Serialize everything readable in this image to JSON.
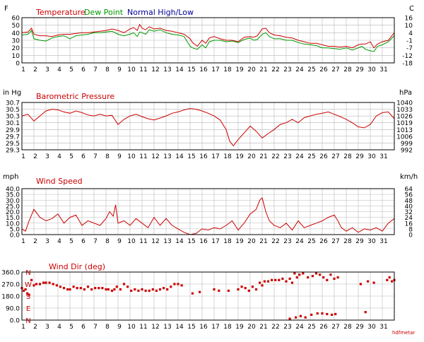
{
  "colors": {
    "temperature": "#cc0000",
    "dew_point": "#009900",
    "normal": "#000099",
    "grid": "#b8b8b8",
    "axis": "#000000",
    "title_red": "#cc0000",
    "compass": "#cc0000"
  },
  "days": [
    "1",
    "2",
    "3",
    "4",
    "5",
    "6",
    "7",
    "8",
    "9",
    "10",
    "11",
    "12",
    "13",
    "14",
    "15",
    "16",
    "17",
    "18",
    "19",
    "20",
    "21",
    "22",
    "23",
    "24",
    "25",
    "26",
    "27",
    "28",
    "29",
    "30",
    "31"
  ],
  "watermark": "hdfmetar",
  "chart_data": [
    {
      "type": "line",
      "legend": [
        {
          "name": "Temperature",
          "color": "#cc0000"
        },
        {
          "name": "Dew Point",
          "color": "#009900"
        },
        {
          "name": "Normal High/Low",
          "color": "#000099"
        }
      ],
      "left_unit": "F",
      "right_unit": "C",
      "left_ticks": [
        "60",
        "50",
        "40",
        "30",
        "20",
        "10",
        "0"
      ],
      "right_ticks": [
        "16",
        "10",
        "4",
        "-1",
        "-7",
        "-12",
        "-18"
      ],
      "ylim": [
        0,
        60
      ],
      "xlim": [
        1,
        32
      ],
      "series": [
        {
          "name": "Temperature",
          "x": [
            1,
            1.5,
            1.8,
            2,
            2.5,
            3,
            3.5,
            4,
            4.5,
            5,
            5.5,
            6,
            6.5,
            7,
            7.5,
            8,
            8.5,
            9,
            9.5,
            10,
            10.3,
            10.6,
            10.8,
            11,
            11.3,
            11.6,
            12,
            12.5,
            13,
            13.5,
            14,
            14.5,
            15,
            15.2,
            15.6,
            16,
            16.3,
            16.6,
            17,
            17.5,
            18,
            18.5,
            19,
            19.5,
            20,
            20.3,
            20.6,
            21,
            21.3,
            21.6,
            22,
            22.5,
            23,
            23.5,
            24,
            24.5,
            25,
            25.5,
            26,
            26.5,
            27,
            27.5,
            28,
            28.5,
            29,
            29.3,
            29.6,
            30,
            30.3,
            30.6,
            31,
            31.5,
            32
          ],
          "values": [
            40,
            41,
            46,
            38,
            36,
            36,
            35,
            37,
            38,
            38,
            39,
            40,
            40,
            41,
            42,
            43,
            45,
            43,
            40,
            45,
            47,
            43,
            51,
            46,
            44,
            48,
            45,
            46,
            43,
            42,
            40,
            38,
            32,
            27,
            22,
            30,
            26,
            33,
            35,
            32,
            30,
            30,
            28,
            34,
            35,
            34,
            36,
            45,
            46,
            40,
            37,
            36,
            34,
            33,
            30,
            28,
            26,
            26,
            24,
            22,
            22,
            21,
            22,
            20,
            24,
            25,
            25,
            28,
            20,
            25,
            28,
            30,
            40
          ]
        },
        {
          "name": "Dew Point",
          "x": [
            1,
            1.5,
            1.8,
            2,
            2.5,
            3,
            3.5,
            4,
            4.5,
            5,
            5.5,
            6,
            6.5,
            7,
            7.5,
            8,
            8.5,
            9,
            9.5,
            10,
            10.3,
            10.6,
            10.8,
            11,
            11.3,
            11.6,
            12,
            12.5,
            13,
            13.5,
            14,
            14.5,
            15,
            15.2,
            15.6,
            16,
            16.3,
            16.6,
            17,
            17.5,
            18,
            18.5,
            19,
            19.5,
            20,
            20.3,
            20.6,
            21,
            21.3,
            21.6,
            22,
            22.5,
            23,
            23.5,
            24,
            24.5,
            25,
            25.5,
            26,
            26.5,
            27,
            27.5,
            28,
            28.5,
            29,
            29.3,
            29.6,
            30,
            30.3,
            30.6,
            31,
            31.5,
            32
          ],
          "values": [
            37,
            38,
            43,
            32,
            30,
            29,
            33,
            35,
            36,
            32,
            36,
            37,
            38,
            40,
            40,
            41,
            42,
            38,
            36,
            38,
            40,
            35,
            41,
            40,
            38,
            44,
            42,
            44,
            40,
            38,
            37,
            35,
            22,
            20,
            18,
            24,
            20,
            28,
            30,
            30,
            28,
            29,
            27,
            31,
            33,
            30,
            31,
            38,
            40,
            35,
            32,
            32,
            30,
            30,
            27,
            25,
            24,
            23,
            20,
            20,
            19,
            18,
            20,
            17,
            20,
            22,
            18,
            16,
            15,
            22,
            24,
            28,
            36
          ]
        }
      ]
    },
    {
      "type": "line",
      "title": "Barometric Pressure",
      "left_unit": "in Hg",
      "right_unit": "hPa",
      "left_ticks": [
        "30.7",
        "30.5",
        "30.3",
        "30.1",
        "29.9",
        "29.7",
        "29.5",
        "29.3"
      ],
      "right_ticks": [
        "1040",
        "1033",
        "1026",
        "1019",
        "1013",
        "1006",
        "999",
        "992"
      ],
      "ylim": [
        29.3,
        30.7
      ],
      "xlim": [
        1,
        32
      ],
      "series": [
        {
          "name": "Barometric Pressure",
          "x": [
            1,
            1.5,
            2,
            2.5,
            3,
            3.5,
            4,
            4.5,
            5,
            5.5,
            6,
            6.5,
            7,
            7.5,
            8,
            8.5,
            9,
            9.5,
            10,
            10.5,
            11,
            11.5,
            12,
            12.5,
            13,
            13.5,
            14,
            14.5,
            15,
            15.5,
            16,
            16.5,
            17,
            17.5,
            18,
            18.3,
            18.6,
            19,
            19.5,
            20,
            20.5,
            21,
            21.5,
            22,
            22.5,
            23,
            23.5,
            24,
            24.5,
            25,
            25.5,
            26,
            26.5,
            27,
            27.5,
            28,
            28.5,
            29,
            29.5,
            30,
            30.5,
            31,
            31.5,
            32
          ],
          "values": [
            30.3,
            30.35,
            30.15,
            30.3,
            30.45,
            30.5,
            30.48,
            30.42,
            30.38,
            30.45,
            30.4,
            30.33,
            30.3,
            30.35,
            30.3,
            30.32,
            30.05,
            30.2,
            30.3,
            30.35,
            30.28,
            30.22,
            30.18,
            30.24,
            30.3,
            30.38,
            30.42,
            30.48,
            30.52,
            30.5,
            30.45,
            30.38,
            30.3,
            30.18,
            29.9,
            29.55,
            29.42,
            29.6,
            29.8,
            30.0,
            29.85,
            29.65,
            29.78,
            29.9,
            30.05,
            30.1,
            30.2,
            30.1,
            30.25,
            30.3,
            30.35,
            30.38,
            30.42,
            30.35,
            30.28,
            30.2,
            30.1,
            29.98,
            29.95,
            30.05,
            30.3,
            30.4,
            30.42,
            30.22
          ]
        }
      ]
    },
    {
      "type": "line",
      "title": "Wind Speed",
      "left_unit": "mph",
      "right_unit": "km/h",
      "left_ticks": [
        "40.0",
        "35.0",
        "30.0",
        "25.0",
        "20.0",
        "15.0",
        "10.0",
        "5.0",
        "0.0"
      ],
      "right_ticks": [
        "64",
        "56",
        "48",
        "40",
        "32",
        "24",
        "16",
        "8",
        "0"
      ],
      "ylim": [
        0,
        40
      ],
      "xlim": [
        1,
        32
      ],
      "series": [
        {
          "name": "Wind Speed",
          "x": [
            1,
            1.3,
            1.6,
            2,
            2.5,
            3,
            3.5,
            4,
            4.5,
            5,
            5.5,
            6,
            6.5,
            7,
            7.5,
            8,
            8.3,
            8.6,
            8.8,
            9,
            9.5,
            10,
            10.5,
            11,
            11.5,
            12,
            12.5,
            13,
            13.5,
            14,
            14.5,
            15,
            15.5,
            16,
            16.5,
            17,
            17.5,
            18,
            18.5,
            19,
            19.5,
            20,
            20.5,
            20.8,
            21,
            21.3,
            21.6,
            22,
            22.5,
            23,
            23.5,
            24,
            24.5,
            25,
            25.5,
            26,
            26.5,
            27,
            27.3,
            27.6,
            28,
            28.5,
            29,
            29.5,
            30,
            30.5,
            31,
            31.5,
            32
          ],
          "values": [
            5,
            3,
            12,
            22,
            15,
            12,
            14,
            18,
            10,
            15,
            17,
            8,
            12,
            10,
            8,
            14,
            20,
            16,
            26,
            10,
            12,
            8,
            14,
            10,
            6,
            15,
            8,
            14,
            8,
            5,
            2,
            0,
            1,
            5,
            4,
            6,
            5,
            8,
            12,
            4,
            10,
            18,
            22,
            30,
            32,
            20,
            12,
            8,
            6,
            10,
            4,
            12,
            6,
            8,
            10,
            12,
            15,
            17,
            12,
            6,
            3,
            6,
            2,
            5,
            4,
            6,
            3,
            10,
            14
          ]
        }
      ]
    },
    {
      "type": "scatter",
      "title": "Wind Dir (deg)",
      "left_ticks": [
        "360.0",
        "270.0",
        "180.0",
        "90.0",
        "0.0"
      ],
      "compass_labels": [
        "N",
        "W",
        "S",
        "E",
        "N"
      ],
      "ylim": [
        0,
        360
      ],
      "xlim": [
        1,
        32
      ],
      "series": [
        {
          "name": "Wind Dir (deg)",
          "x": [
            1,
            1.15,
            1.3,
            1.45,
            1.6,
            1.8,
            2,
            2.2,
            2.5,
            2.8,
            3,
            3.3,
            3.6,
            3.9,
            4.2,
            4.5,
            4.8,
            5,
            5.3,
            5.6,
            5.9,
            6.2,
            6.5,
            6.8,
            7.1,
            7.4,
            7.7,
            8,
            8.2,
            8.5,
            8.7,
            8.9,
            9.2,
            9.5,
            9.8,
            10.1,
            10.4,
            10.7,
            11,
            11.3,
            11.6,
            11.9,
            12.2,
            12.5,
            12.8,
            13.1,
            13.4,
            13.7,
            14,
            14.3,
            15.2,
            15.8,
            17,
            17.4,
            18.2,
            19,
            19.3,
            19.6,
            19.9,
            20.2,
            20.5,
            20.8,
            21,
            21.2,
            21.5,
            21.8,
            22.1,
            22.4,
            22.7,
            23,
            23.3,
            23.5,
            23.7,
            23.9,
            24.1,
            24.4,
            24.8,
            25.2,
            25.5,
            25.8,
            26.1,
            26.4,
            26.7,
            27,
            27.3,
            29.2,
            29.8,
            30.3,
            31.4,
            31.6,
            31.8,
            32,
            23.3,
            23.8,
            24.2,
            24.6,
            25.1,
            25.6,
            26,
            26.4,
            26.8,
            27.1,
            29.6
          ],
          "values": [
            240,
            220,
            230,
            200,
            190,
            300,
            260,
            270,
            270,
            280,
            280,
            280,
            270,
            260,
            250,
            240,
            230,
            230,
            250,
            240,
            240,
            230,
            250,
            230,
            240,
            240,
            240,
            230,
            230,
            220,
            230,
            250,
            230,
            270,
            250,
            220,
            230,
            220,
            230,
            220,
            220,
            230,
            220,
            230,
            240,
            230,
            250,
            270,
            270,
            260,
            200,
            210,
            230,
            220,
            220,
            230,
            250,
            240,
            220,
            250,
            230,
            280,
            260,
            290,
            290,
            300,
            300,
            300,
            310,
            290,
            310,
            280,
            350,
            320,
            340,
            350,
            320,
            330,
            350,
            340,
            320,
            300,
            340,
            310,
            320,
            270,
            290,
            280,
            300,
            320,
            290,
            300,
            10,
            20,
            30,
            20,
            40,
            50,
            50,
            45,
            40,
            45,
            60
          ]
        }
      ]
    }
  ]
}
